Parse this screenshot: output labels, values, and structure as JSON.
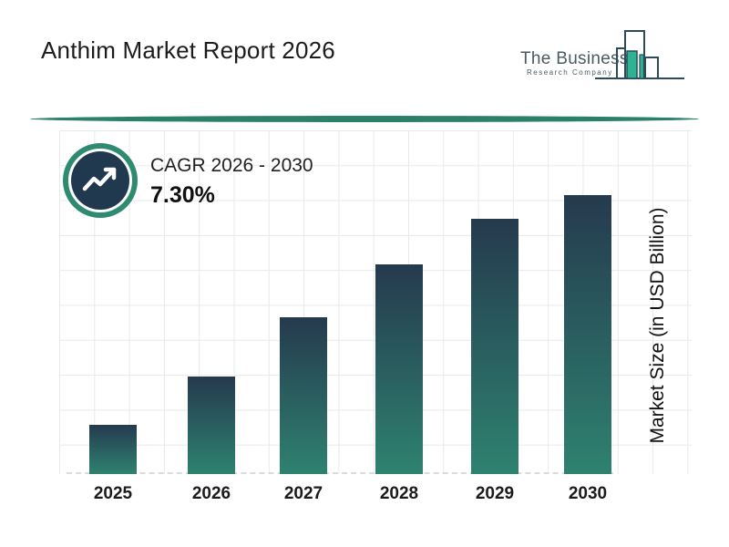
{
  "title": "Anthim Market Report 2026",
  "logo": {
    "name": "The Business",
    "subname": "Research Company",
    "icon": "bar-buildings-logo-icon",
    "green": "#2cb392",
    "outline": "#2d4a5c"
  },
  "cagr": {
    "label": "CAGR 2026 - 2030",
    "value": "7.30%",
    "icon": "trend-up-icon",
    "ring_color": "#2e8b72",
    "disc_color": "#21394e"
  },
  "chart_data": {
    "type": "bar",
    "categories": [
      "2025",
      "2026",
      "2027",
      "2028",
      "2029",
      "2030"
    ],
    "values": [
      1.4,
      2.8,
      4.5,
      6.0,
      7.3,
      8.0
    ],
    "values_unit": "background grid squares (chart shows no numeric y-axis ticks)",
    "title": "Anthim Market Report 2026",
    "xlabel": "",
    "ylabel": "Market Size (in USD Billion)",
    "ylim": [
      0,
      9.8
    ],
    "grid": true,
    "baseline_style": "dashed",
    "legend": "none",
    "bar_colors": {
      "top": "#253a4e",
      "bottom": "#2e8270"
    }
  },
  "colors": {
    "background": "#ffffff",
    "divider_teal": "#2a8069",
    "gridline": "#e8eaea",
    "baseline_dash": "#dbdbdb",
    "text": "#1c1c1c"
  }
}
